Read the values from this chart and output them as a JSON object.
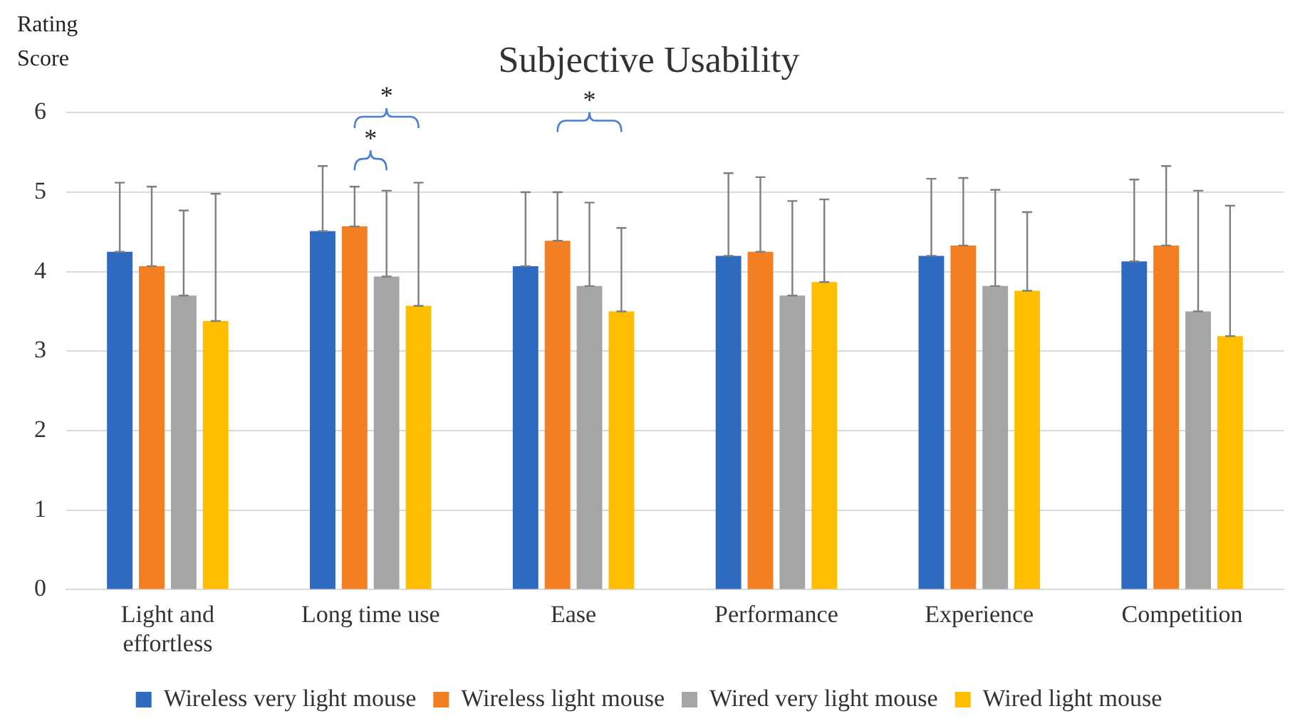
{
  "chart_data": {
    "type": "bar",
    "title": "Subjective Usability",
    "ylabel": "Rating Score",
    "categories": [
      "Light and effortless",
      "Long time use",
      "Ease",
      "Performance",
      "Experience",
      "Competition"
    ],
    "series": [
      {
        "name": "Wireless very light mouse",
        "color": "#2e6bc0",
        "values": [
          4.25,
          4.51,
          4.07,
          4.2,
          4.2,
          4.13
        ],
        "errors": [
          [
            4.25,
            5.12
          ],
          [
            4.51,
            5.33
          ],
          [
            4.07,
            5.0
          ],
          [
            4.2,
            5.24
          ],
          [
            4.2,
            5.17
          ],
          [
            4.13,
            5.16
          ]
        ]
      },
      {
        "name": "Wireless light mouse",
        "color": "#f47f22",
        "values": [
          4.07,
          4.57,
          4.39,
          4.25,
          4.33,
          4.33
        ],
        "errors": [
          [
            4.07,
            5.07
          ],
          [
            4.57,
            5.07
          ],
          [
            4.39,
            5.0
          ],
          [
            4.25,
            5.19
          ],
          [
            4.33,
            5.18
          ],
          [
            4.33,
            5.33
          ]
        ]
      },
      {
        "name": "Wired very light mouse",
        "color": "#a5a5a5",
        "values": [
          3.7,
          3.94,
          3.82,
          3.7,
          3.82,
          3.5
        ],
        "errors": [
          [
            3.7,
            4.77
          ],
          [
            3.94,
            5.02
          ],
          [
            3.82,
            4.87
          ],
          [
            3.7,
            4.89
          ],
          [
            3.82,
            5.03
          ],
          [
            3.5,
            5.02
          ]
        ]
      },
      {
        "name": "Wired light mouse",
        "color": "#ffbf00",
        "values": [
          3.38,
          3.57,
          3.5,
          3.87,
          3.76,
          3.19
        ],
        "errors": [
          [
            3.38,
            4.98
          ],
          [
            3.57,
            5.12
          ],
          [
            3.5,
            4.55
          ],
          [
            3.87,
            4.91
          ],
          [
            3.76,
            4.75
          ],
          [
            3.19,
            4.83
          ]
        ]
      }
    ],
    "ylim": [
      0,
      6
    ],
    "yticks": [
      0,
      1,
      2,
      3,
      4,
      5,
      6
    ],
    "grid": "y",
    "legend": "bottom",
    "annotations": [
      "*",
      "*",
      "*"
    ]
  }
}
